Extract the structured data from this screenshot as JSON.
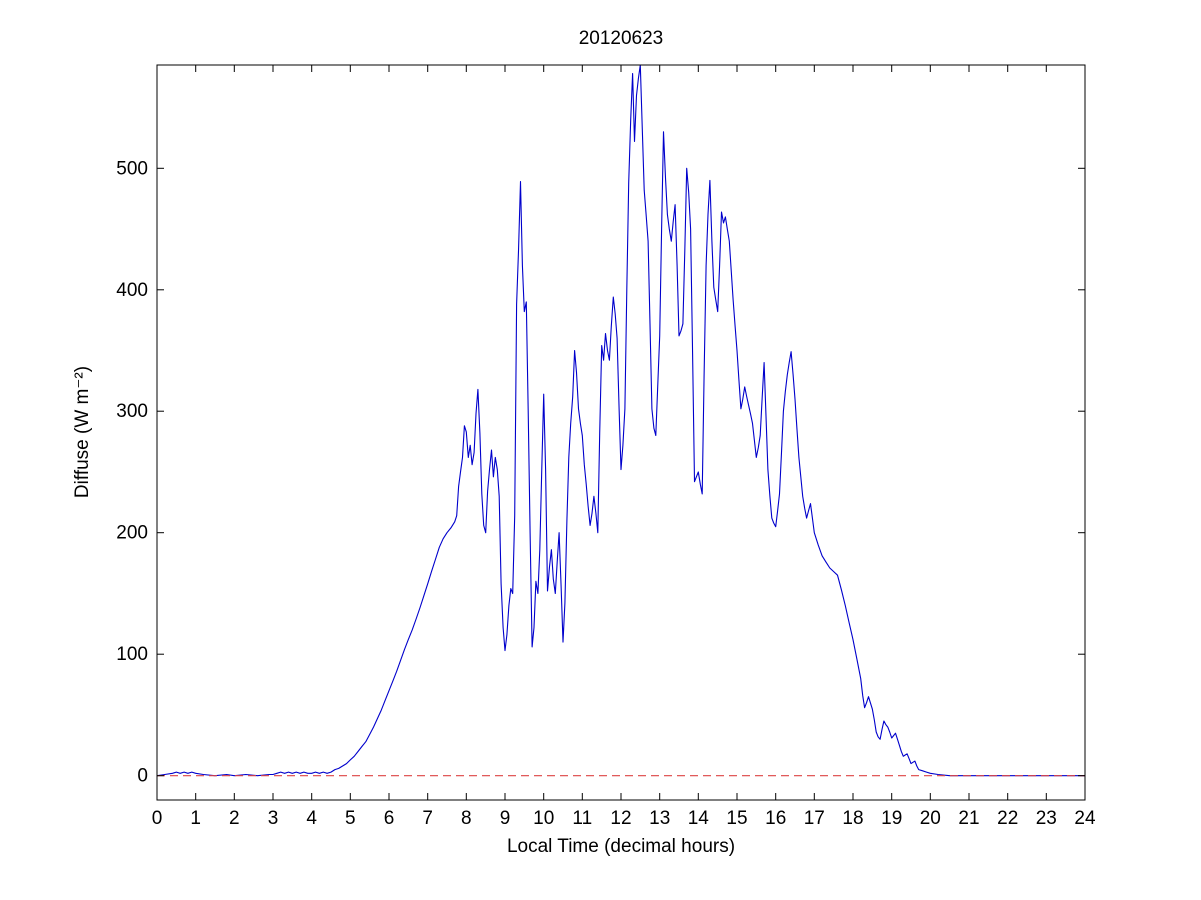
{
  "figure": {
    "background": "#ffffff"
  },
  "chart_data": {
    "type": "line",
    "title": "20120623",
    "xlabel": "Local Time (decimal hours)",
    "ylabel": "Diffuse (W m⁻²)",
    "xlim": [
      0,
      24
    ],
    "ylim": [
      -20,
      585
    ],
    "x_ticks": [
      0,
      1,
      2,
      3,
      4,
      5,
      6,
      7,
      8,
      9,
      10,
      11,
      12,
      13,
      14,
      15,
      16,
      17,
      18,
      19,
      20,
      21,
      22,
      23,
      24
    ],
    "y_ticks": [
      0,
      100,
      200,
      300,
      400,
      500
    ],
    "grid": false,
    "box": true,
    "colors": {
      "axis": "#000000",
      "series": "#0000cc",
      "zero_line": "#dd4444"
    },
    "series": [
      {
        "name": "diffuse",
        "color": "#0000cc",
        "style": "solid",
        "points": [
          [
            0,
            0
          ],
          [
            0.2,
            1
          ],
          [
            0.4,
            2
          ],
          [
            0.5,
            3
          ],
          [
            0.6,
            2
          ],
          [
            0.7,
            3
          ],
          [
            0.8,
            2
          ],
          [
            0.9,
            3
          ],
          [
            1,
            2
          ],
          [
            1.2,
            1
          ],
          [
            1.5,
            0
          ],
          [
            1.8,
            1
          ],
          [
            2,
            0
          ],
          [
            2.3,
            1
          ],
          [
            2.6,
            0
          ],
          [
            2.9,
            1
          ],
          [
            3,
            1
          ],
          [
            3.1,
            2
          ],
          [
            3.2,
            3
          ],
          [
            3.3,
            2
          ],
          [
            3.4,
            3
          ],
          [
            3.5,
            2
          ],
          [
            3.6,
            3
          ],
          [
            3.7,
            2
          ],
          [
            3.8,
            3
          ],
          [
            3.9,
            2
          ],
          [
            4,
            2
          ],
          [
            4.1,
            3
          ],
          [
            4.2,
            2
          ],
          [
            4.3,
            3
          ],
          [
            4.4,
            2
          ],
          [
            4.5,
            3
          ],
          [
            4.6,
            5
          ],
          [
            4.7,
            6
          ],
          [
            4.8,
            8
          ],
          [
            4.9,
            10
          ],
          [
            5,
            13
          ],
          [
            5.1,
            16
          ],
          [
            5.2,
            20
          ],
          [
            5.3,
            24
          ],
          [
            5.4,
            28
          ],
          [
            5.5,
            34
          ],
          [
            5.6,
            40
          ],
          [
            5.7,
            47
          ],
          [
            5.8,
            54
          ],
          [
            5.9,
            62
          ],
          [
            6,
            70
          ],
          [
            6.1,
            78
          ],
          [
            6.2,
            86
          ],
          [
            6.3,
            95
          ],
          [
            6.4,
            104
          ],
          [
            6.5,
            112
          ],
          [
            6.6,
            120
          ],
          [
            6.7,
            129
          ],
          [
            6.8,
            138
          ],
          [
            6.9,
            148
          ],
          [
            7,
            158
          ],
          [
            7.1,
            168
          ],
          [
            7.2,
            178
          ],
          [
            7.3,
            188
          ],
          [
            7.4,
            195
          ],
          [
            7.5,
            200
          ],
          [
            7.6,
            204
          ],
          [
            7.7,
            209
          ],
          [
            7.75,
            214
          ],
          [
            7.8,
            238
          ],
          [
            7.85,
            250
          ],
          [
            7.9,
            262
          ],
          [
            7.95,
            288
          ],
          [
            8,
            283
          ],
          [
            8.05,
            262
          ],
          [
            8.1,
            272
          ],
          [
            8.15,
            256
          ],
          [
            8.2,
            266
          ],
          [
            8.25,
            298
          ],
          [
            8.3,
            318
          ],
          [
            8.35,
            282
          ],
          [
            8.4,
            232
          ],
          [
            8.45,
            206
          ],
          [
            8.5,
            200
          ],
          [
            8.55,
            234
          ],
          [
            8.6,
            252
          ],
          [
            8.65,
            268
          ],
          [
            8.7,
            246
          ],
          [
            8.75,
            262
          ],
          [
            8.8,
            252
          ],
          [
            8.85,
            230
          ],
          [
            8.9,
            158
          ],
          [
            8.95,
            122
          ],
          [
            9,
            103
          ],
          [
            9.05,
            116
          ],
          [
            9.1,
            140
          ],
          [
            9.15,
            154
          ],
          [
            9.2,
            150
          ],
          [
            9.25,
            214
          ],
          [
            9.3,
            388
          ],
          [
            9.35,
            432
          ],
          [
            9.4,
            489
          ],
          [
            9.45,
            420
          ],
          [
            9.5,
            382
          ],
          [
            9.55,
            390
          ],
          [
            9.6,
            300
          ],
          [
            9.65,
            200
          ],
          [
            9.7,
            106
          ],
          [
            9.75,
            122
          ],
          [
            9.8,
            160
          ],
          [
            9.85,
            150
          ],
          [
            9.9,
            186
          ],
          [
            9.95,
            250
          ],
          [
            10,
            314
          ],
          [
            10.05,
            252
          ],
          [
            10.1,
            152
          ],
          [
            10.15,
            172
          ],
          [
            10.2,
            186
          ],
          [
            10.25,
            162
          ],
          [
            10.3,
            150
          ],
          [
            10.35,
            176
          ],
          [
            10.4,
            200
          ],
          [
            10.45,
            156
          ],
          [
            10.5,
            110
          ],
          [
            10.55,
            142
          ],
          [
            10.6,
            210
          ],
          [
            10.65,
            262
          ],
          [
            10.7,
            290
          ],
          [
            10.75,
            312
          ],
          [
            10.8,
            350
          ],
          [
            10.85,
            332
          ],
          [
            10.9,
            302
          ],
          [
            10.95,
            290
          ],
          [
            11,
            280
          ],
          [
            11.05,
            256
          ],
          [
            11.1,
            240
          ],
          [
            11.15,
            222
          ],
          [
            11.2,
            206
          ],
          [
            11.25,
            216
          ],
          [
            11.3,
            230
          ],
          [
            11.35,
            216
          ],
          [
            11.4,
            200
          ],
          [
            11.45,
            282
          ],
          [
            11.5,
            354
          ],
          [
            11.55,
            342
          ],
          [
            11.6,
            364
          ],
          [
            11.65,
            350
          ],
          [
            11.7,
            342
          ],
          [
            11.75,
            370
          ],
          [
            11.8,
            394
          ],
          [
            11.85,
            380
          ],
          [
            11.9,
            360
          ],
          [
            11.95,
            302
          ],
          [
            12,
            252
          ],
          [
            12.05,
            272
          ],
          [
            12.1,
            302
          ],
          [
            12.15,
            400
          ],
          [
            12.2,
            488
          ],
          [
            12.25,
            540
          ],
          [
            12.3,
            578
          ],
          [
            12.35,
            522
          ],
          [
            12.4,
            560
          ],
          [
            12.45,
            574
          ],
          [
            12.5,
            585
          ],
          [
            12.55,
            532
          ],
          [
            12.6,
            482
          ],
          [
            12.65,
            462
          ],
          [
            12.7,
            440
          ],
          [
            12.75,
            372
          ],
          [
            12.8,
            302
          ],
          [
            12.85,
            286
          ],
          [
            12.9,
            280
          ],
          [
            12.95,
            320
          ],
          [
            13,
            362
          ],
          [
            13.05,
            450
          ],
          [
            13.1,
            530
          ],
          [
            13.15,
            492
          ],
          [
            13.2,
            462
          ],
          [
            13.25,
            450
          ],
          [
            13.3,
            440
          ],
          [
            13.35,
            456
          ],
          [
            13.4,
            470
          ],
          [
            13.45,
            420
          ],
          [
            13.5,
            362
          ],
          [
            13.55,
            366
          ],
          [
            13.6,
            372
          ],
          [
            13.65,
            432
          ],
          [
            13.7,
            500
          ],
          [
            13.75,
            480
          ],
          [
            13.8,
            450
          ],
          [
            13.85,
            352
          ],
          [
            13.9,
            242
          ],
          [
            13.95,
            246
          ],
          [
            14,
            250
          ],
          [
            14.05,
            240
          ],
          [
            14.1,
            232
          ],
          [
            14.15,
            330
          ],
          [
            14.2,
            420
          ],
          [
            14.25,
            462
          ],
          [
            14.3,
            490
          ],
          [
            14.35,
            440
          ],
          [
            14.4,
            402
          ],
          [
            14.45,
            392
          ],
          [
            14.5,
            382
          ],
          [
            14.55,
            420
          ],
          [
            14.6,
            464
          ],
          [
            14.65,
            455
          ],
          [
            14.7,
            460
          ],
          [
            14.75,
            450
          ],
          [
            14.8,
            440
          ],
          [
            14.85,
            416
          ],
          [
            14.9,
            392
          ],
          [
            14.95,
            370
          ],
          [
            15,
            350
          ],
          [
            15.05,
            326
          ],
          [
            15.1,
            302
          ],
          [
            15.15,
            310
          ],
          [
            15.2,
            320
          ],
          [
            15.25,
            312
          ],
          [
            15.3,
            305
          ],
          [
            15.35,
            298
          ],
          [
            15.4,
            290
          ],
          [
            15.45,
            276
          ],
          [
            15.5,
            262
          ],
          [
            15.55,
            270
          ],
          [
            15.6,
            280
          ],
          [
            15.65,
            310
          ],
          [
            15.7,
            340
          ],
          [
            15.75,
            296
          ],
          [
            15.8,
            252
          ],
          [
            15.85,
            230
          ],
          [
            15.9,
            212
          ],
          [
            15.95,
            208
          ],
          [
            16,
            205
          ],
          [
            16.05,
            218
          ],
          [
            16.1,
            232
          ],
          [
            16.15,
            266
          ],
          [
            16.2,
            300
          ],
          [
            16.25,
            316
          ],
          [
            16.3,
            330
          ],
          [
            16.35,
            340
          ],
          [
            16.4,
            349
          ],
          [
            16.45,
            330
          ],
          [
            16.5,
            310
          ],
          [
            16.55,
            286
          ],
          [
            16.6,
            262
          ],
          [
            16.65,
            246
          ],
          [
            16.7,
            230
          ],
          [
            16.75,
            220
          ],
          [
            16.8,
            212
          ],
          [
            16.85,
            218
          ],
          [
            16.9,
            224
          ],
          [
            16.95,
            212
          ],
          [
            17,
            200
          ],
          [
            17.1,
            190
          ],
          [
            17.2,
            181
          ],
          [
            17.3,
            176
          ],
          [
            17.4,
            171
          ],
          [
            17.5,
            168
          ],
          [
            17.6,
            165
          ],
          [
            17.7,
            153
          ],
          [
            17.8,
            140
          ],
          [
            17.9,
            126
          ],
          [
            18,
            112
          ],
          [
            18.1,
            96
          ],
          [
            18.2,
            80
          ],
          [
            18.25,
            66
          ],
          [
            18.3,
            56
          ],
          [
            18.35,
            60
          ],
          [
            18.4,
            65
          ],
          [
            18.45,
            60
          ],
          [
            18.5,
            55
          ],
          [
            18.55,
            46
          ],
          [
            18.6,
            36
          ],
          [
            18.65,
            32
          ],
          [
            18.7,
            30
          ],
          [
            18.75,
            38
          ],
          [
            18.8,
            45
          ],
          [
            18.85,
            42
          ],
          [
            18.9,
            40
          ],
          [
            18.95,
            36
          ],
          [
            19,
            31
          ],
          [
            19.05,
            33
          ],
          [
            19.1,
            35
          ],
          [
            19.15,
            30
          ],
          [
            19.2,
            25
          ],
          [
            19.25,
            20
          ],
          [
            19.3,
            16
          ],
          [
            19.35,
            17
          ],
          [
            19.4,
            18
          ],
          [
            19.45,
            14
          ],
          [
            19.5,
            10
          ],
          [
            19.55,
            11
          ],
          [
            19.6,
            12
          ],
          [
            19.65,
            8
          ],
          [
            19.7,
            5
          ],
          [
            19.8,
            4
          ],
          [
            19.9,
            3
          ],
          [
            20,
            2
          ],
          [
            20.2,
            1
          ],
          [
            20.5,
            0
          ],
          [
            21,
            0
          ],
          [
            21.5,
            0
          ],
          [
            22,
            0
          ],
          [
            22.5,
            0
          ],
          [
            23,
            0
          ],
          [
            23.5,
            0
          ],
          [
            24,
            0
          ]
        ]
      },
      {
        "name": "zero-reference",
        "color": "#dd4444",
        "style": "dashed",
        "points": [
          [
            0,
            0
          ],
          [
            24,
            0
          ]
        ]
      }
    ]
  }
}
